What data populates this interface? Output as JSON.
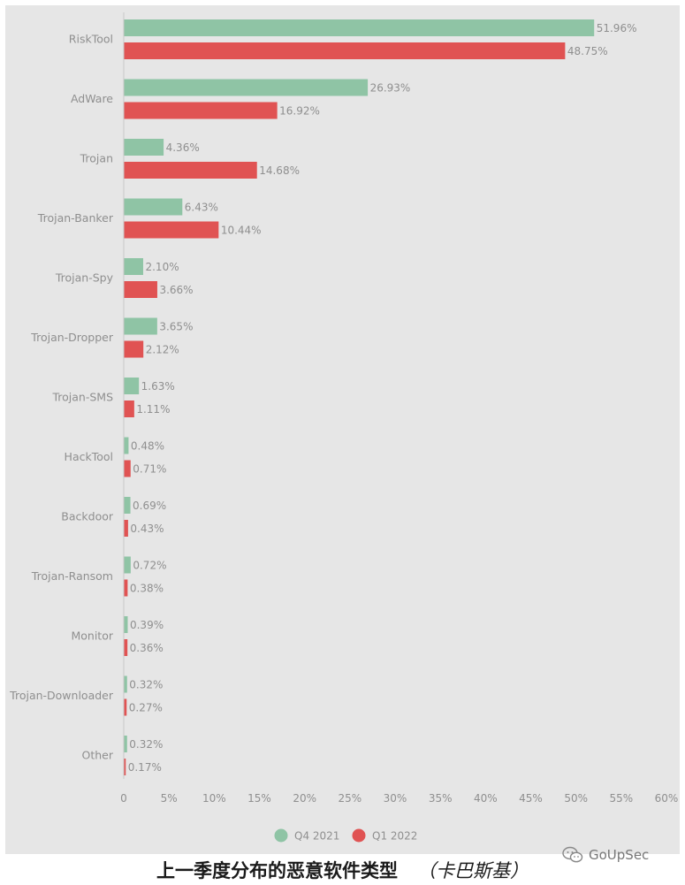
{
  "chart_data": {
    "type": "bar",
    "orientation": "horizontal",
    "categories": [
      "RiskTool",
      "AdWare",
      "Trojan",
      "Trojan-Banker",
      "Trojan-Spy",
      "Trojan-Dropper",
      "Trojan-SMS",
      "HackTool",
      "Backdoor",
      "Trojan-Ransom",
      "Monitor",
      "Trojan-Downloader",
      "Other"
    ],
    "series": [
      {
        "name": "Q4 2021",
        "color": "#8fc4a5",
        "values": [
          51.96,
          26.93,
          4.36,
          6.43,
          2.1,
          3.65,
          1.63,
          0.48,
          0.69,
          0.72,
          0.39,
          0.32,
          0.32
        ],
        "labels": [
          "51.96%",
          "26.93%",
          "4.36%",
          "6.43%",
          "2.10%",
          "3.65%",
          "1.63%",
          "0.48%",
          "0.69%",
          "0.72%",
          "0.39%",
          "0.32%",
          "0.32%"
        ]
      },
      {
        "name": "Q1 2022",
        "color": "#e05353",
        "values": [
          48.75,
          16.92,
          14.68,
          10.44,
          3.66,
          2.12,
          1.11,
          0.71,
          0.43,
          0.38,
          0.36,
          0.27,
          0.17
        ],
        "labels": [
          "48.75%",
          "16.92%",
          "14.68%",
          "10.44%",
          "3.66%",
          "2.12%",
          "1.11%",
          "0.71%",
          "0.43%",
          "0.38%",
          "0.36%",
          "0.27%",
          "0.17%"
        ]
      }
    ],
    "xlim": [
      0,
      60
    ],
    "xticks": [
      "0",
      "5%",
      "10%",
      "15%",
      "20%",
      "25%",
      "30%",
      "35%",
      "40%",
      "45%",
      "50%",
      "55%",
      "60%"
    ],
    "grid": false,
    "legend_position": "bottom"
  },
  "caption": {
    "title": "上一季度分布的恶意软件类型",
    "source": "（卡巴斯基）"
  },
  "watermark": {
    "text": "GoUpSec"
  }
}
